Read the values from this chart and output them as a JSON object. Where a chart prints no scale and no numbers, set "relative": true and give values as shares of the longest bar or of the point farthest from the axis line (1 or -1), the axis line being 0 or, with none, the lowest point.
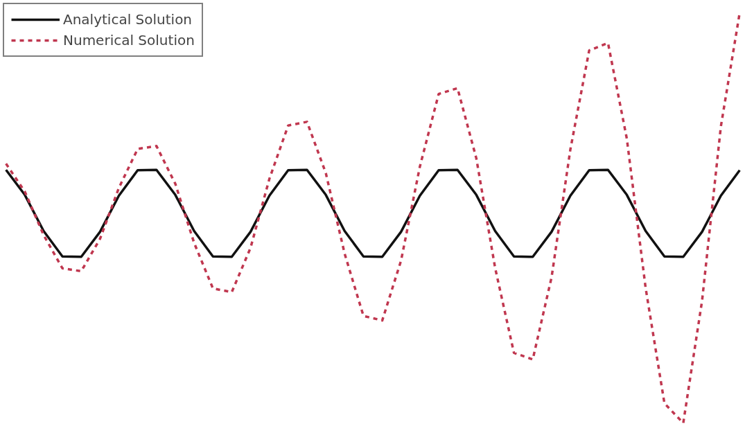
{
  "chart_data": {
    "type": "line",
    "relative": true,
    "legend": "top left",
    "grid": false,
    "marker": "none",
    "categories": [
      null,
      null,
      null,
      null,
      null,
      null,
      null,
      null,
      null,
      null,
      null,
      null,
      null,
      null,
      null,
      null,
      null,
      null,
      null,
      null,
      null,
      null,
      null,
      null,
      null,
      null,
      null,
      null,
      null,
      null,
      null,
      null,
      null,
      null,
      null,
      null,
      null,
      null,
      null,
      null
    ],
    "series": [
      {
        "name": "Analytical Solution",
        "color": "#111111",
        "line_style": "solid",
        "values": [
          0.617,
          0.556,
          0.468,
          0.406,
          0.405,
          0.466,
          0.554,
          0.616,
          0.617,
          0.556,
          0.468,
          0.406,
          0.405,
          0.466,
          0.554,
          0.616,
          0.617,
          0.556,
          0.468,
          0.406,
          0.405,
          0.466,
          0.554,
          0.616,
          0.617,
          0.556,
          0.468,
          0.406,
          0.405,
          0.466,
          0.554,
          0.616,
          0.617,
          0.556,
          0.468,
          0.406,
          0.405,
          0.466,
          0.554,
          0.616
        ]
      },
      {
        "name": "Numerical Solution",
        "color": "#c0374f",
        "line_style": "dashed",
        "values": [
          0.632,
          0.564,
          0.458,
          0.377,
          0.37,
          0.449,
          0.573,
          0.668,
          0.675,
          0.583,
          0.439,
          0.328,
          0.319,
          0.427,
          0.595,
          0.725,
          0.734,
          0.609,
          0.413,
          0.261,
          0.25,
          0.396,
          0.625,
          0.802,
          0.816,
          0.645,
          0.378,
          0.171,
          0.155,
          0.355,
          0.667,
          0.908,
          0.926,
          0.693,
          0.329,
          0.048,
          0.0,
          0.298,
          0.723,
          1.0
        ]
      }
    ]
  }
}
